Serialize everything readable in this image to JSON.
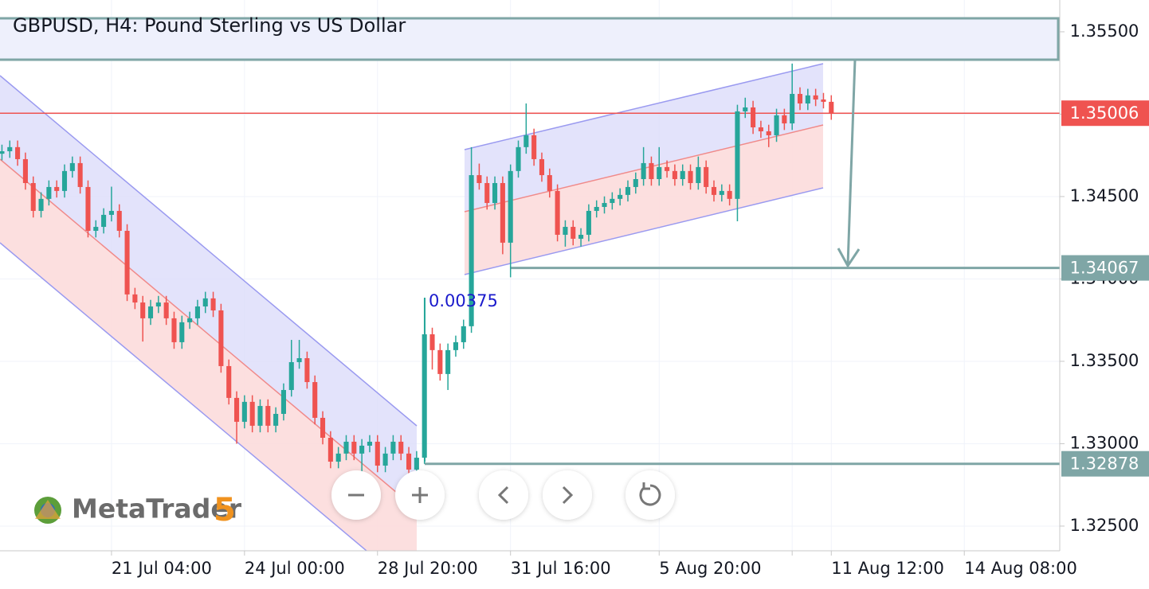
{
  "chart_data": {
    "type": "candlestick",
    "title": "GBPUSD, H4: Pound Sterling vs US Dollar",
    "watermark": "MetaTrader",
    "watermark_version": "5",
    "up_color": "#26a69a",
    "down_color": "#ef5350",
    "grid": true,
    "ylim": [
      1.3235,
      1.35693
    ],
    "yticks": [
      {
        "value": 1.325,
        "label": "1.32500"
      },
      {
        "value": 1.33,
        "label": "1.33000"
      },
      {
        "value": 1.335,
        "label": "1.33500"
      },
      {
        "value": 1.34,
        "label": "1.34000"
      },
      {
        "value": 1.345,
        "label": "1.34500"
      },
      {
        "value": 1.35,
        "label": "1.35000"
      },
      {
        "value": 1.355,
        "label": "1.35500"
      }
    ],
    "xlim": [
      -0.25,
      135.2
    ],
    "xticks": [
      {
        "value": 14,
        "label": "21 Jul 04:00"
      },
      {
        "value": 31,
        "label": "24 Jul 00:00"
      },
      {
        "value": 48,
        "label": "28 Jul 20:00"
      },
      {
        "value": 65,
        "label": "31 Jul 16:00"
      },
      {
        "value": 84,
        "label": "5 Aug 20:00"
      },
      {
        "value": 101,
        "label": null
      },
      {
        "value": 106,
        "label": "11 Aug 12:00"
      },
      {
        "value": 123,
        "label": "14 Aug 08:00"
      }
    ],
    "price_lines": [
      {
        "value": 1.35006,
        "color": "#ef5350"
      },
      {
        "value": 1.34067,
        "color": "#7fa6a6"
      },
      {
        "value": 1.32878,
        "color": "#7fa6a6"
      }
    ],
    "annotations": [
      {
        "text": "0.00375",
        "color": "#1a1acc"
      }
    ],
    "candles": [
      [
        1.3476,
        1.34815,
        1.3472,
        1.34775
      ],
      [
        1.34775,
        1.3484,
        1.34735,
        1.348
      ],
      [
        1.348,
        1.3484,
        1.34687,
        1.34727
      ],
      [
        1.34727,
        1.34767,
        1.34542,
        1.34582
      ],
      [
        1.34582,
        1.34622,
        1.34373,
        1.34413
      ],
      [
        1.34413,
        1.34526,
        1.34373,
        1.34486
      ],
      [
        1.34486,
        1.34598,
        1.34446,
        1.34558
      ],
      [
        1.34558,
        1.34598,
        1.34494,
        1.34534
      ],
      [
        1.34534,
        1.34695,
        1.34494,
        1.34655
      ],
      [
        1.34655,
        1.34743,
        1.34615,
        1.34703
      ],
      [
        1.34703,
        1.34743,
        1.34518,
        1.34558
      ],
      [
        1.34558,
        1.34598,
        1.34252,
        1.34292
      ],
      [
        1.34292,
        1.34356,
        1.34252,
        1.34316
      ],
      [
        1.34316,
        1.34429,
        1.34276,
        1.34389
      ],
      [
        1.34389,
        1.3456,
        1.34349,
        1.34413
      ],
      [
        1.34413,
        1.34453,
        1.34252,
        1.34292
      ],
      [
        1.34292,
        1.34332,
        1.33866,
        1.33906
      ],
      [
        1.33906,
        1.33946,
        1.33817,
        1.33857
      ],
      [
        1.33857,
        1.33897,
        1.3362,
        1.33761
      ],
      [
        1.33761,
        1.33873,
        1.33721,
        1.33833
      ],
      [
        1.33833,
        1.33897,
        1.33793,
        1.33857
      ],
      [
        1.33857,
        1.33897,
        1.33721,
        1.33761
      ],
      [
        1.33761,
        1.33801,
        1.33576,
        1.33616
      ],
      [
        1.33616,
        1.33777,
        1.33576,
        1.33737
      ],
      [
        1.33737,
        1.33801,
        1.33697,
        1.33761
      ],
      [
        1.33761,
        1.33873,
        1.33721,
        1.33833
      ],
      [
        1.33833,
        1.33922,
        1.33793,
        1.33882
      ],
      [
        1.33882,
        1.33922,
        1.33769,
        1.33809
      ],
      [
        1.33809,
        1.33849,
        1.33431,
        1.33471
      ],
      [
        1.33471,
        1.33511,
        1.33238,
        1.33278
      ],
      [
        1.33278,
        1.33318,
        1.33,
        1.33133
      ],
      [
        1.33133,
        1.33294,
        1.33093,
        1.33254
      ],
      [
        1.33254,
        1.33294,
        1.33069,
        1.33109
      ],
      [
        1.33109,
        1.33269,
        1.33069,
        1.33229
      ],
      [
        1.33229,
        1.33269,
        1.33069,
        1.33109
      ],
      [
        1.33109,
        1.33221,
        1.33069,
        1.33181
      ],
      [
        1.33181,
        1.33366,
        1.33141,
        1.33326
      ],
      [
        1.33326,
        1.3363,
        1.33286,
        1.33495
      ],
      [
        1.33495,
        1.3363,
        1.33455,
        1.33519
      ],
      [
        1.33519,
        1.33559,
        1.33334,
        1.33374
      ],
      [
        1.33374,
        1.33414,
        1.33117,
        1.33157
      ],
      [
        1.33157,
        1.33197,
        1.32996,
        1.33036
      ],
      [
        1.33036,
        1.33076,
        1.32851,
        1.32891
      ],
      [
        1.32891,
        1.3298,
        1.32851,
        1.3294
      ],
      [
        1.3294,
        1.33052,
        1.329,
        1.33012
      ],
      [
        1.33012,
        1.33052,
        1.329,
        1.3294
      ],
      [
        1.3294,
        1.33028,
        1.32746,
        1.32988
      ],
      [
        1.32988,
        1.33052,
        1.32948,
        1.33012
      ],
      [
        1.33012,
        1.33052,
        1.32827,
        1.32867
      ],
      [
        1.32867,
        1.3298,
        1.32827,
        1.3294
      ],
      [
        1.3294,
        1.33052,
        1.329,
        1.33012
      ],
      [
        1.33012,
        1.33052,
        1.329,
        1.3294
      ],
      [
        1.3294,
        1.3298,
        1.32803,
        1.32843
      ],
      [
        1.32843,
        1.32955,
        1.32803,
        1.32915
      ],
      [
        1.32915,
        1.33882,
        1.32878,
        1.33664
      ],
      [
        1.33664,
        1.33704,
        1.3345,
        1.33568
      ],
      [
        1.33568,
        1.33608,
        1.33383,
        1.33423
      ],
      [
        1.33423,
        1.33608,
        1.33326,
        1.33568
      ],
      [
        1.33568,
        1.33656,
        1.33528,
        1.33616
      ],
      [
        1.33616,
        1.33753,
        1.33576,
        1.33713
      ],
      [
        1.33713,
        1.348,
        1.33673,
        1.3463
      ],
      [
        1.3463,
        1.347,
        1.34542,
        1.34582
      ],
      [
        1.34582,
        1.34622,
        1.34421,
        1.34461
      ],
      [
        1.34461,
        1.34622,
        1.34421,
        1.34582
      ],
      [
        1.34582,
        1.34622,
        1.3415,
        1.3422
      ],
      [
        1.3422,
        1.34695,
        1.3401,
        1.34655
      ],
      [
        1.34655,
        1.3484,
        1.34615,
        1.348
      ],
      [
        1.348,
        1.35065,
        1.3476,
        1.34872
      ],
      [
        1.34872,
        1.34912,
        1.34687,
        1.34727
      ],
      [
        1.34727,
        1.34767,
        1.3459,
        1.3463
      ],
      [
        1.3463,
        1.3467,
        1.34494,
        1.34534
      ],
      [
        1.34534,
        1.34574,
        1.34228,
        1.34268
      ],
      [
        1.34268,
        1.34356,
        1.34196,
        1.34316
      ],
      [
        1.34316,
        1.34356,
        1.34204,
        1.34244
      ],
      [
        1.34244,
        1.34308,
        1.34196,
        1.34268
      ],
      [
        1.34268,
        1.34453,
        1.34228,
        1.34413
      ],
      [
        1.34413,
        1.34477,
        1.34373,
        1.34437
      ],
      [
        1.34437,
        1.34501,
        1.34397,
        1.34461
      ],
      [
        1.34461,
        1.34526,
        1.34421,
        1.34486
      ],
      [
        1.34486,
        1.3455,
        1.34446,
        1.3451
      ],
      [
        1.3451,
        1.34598,
        1.3447,
        1.34558
      ],
      [
        1.34558,
        1.34646,
        1.34518,
        1.34606
      ],
      [
        1.34606,
        1.348,
        1.34566,
        1.34703
      ],
      [
        1.34703,
        1.34743,
        1.34566,
        1.34606
      ],
      [
        1.34606,
        1.348,
        1.34566,
        1.34679
      ],
      [
        1.34679,
        1.34719,
        1.34615,
        1.34655
      ],
      [
        1.34655,
        1.34695,
        1.34566,
        1.34606
      ],
      [
        1.34606,
        1.34695,
        1.34566,
        1.34655
      ],
      [
        1.34655,
        1.34695,
        1.34542,
        1.34582
      ],
      [
        1.34582,
        1.34743,
        1.34542,
        1.34679
      ],
      [
        1.34679,
        1.34719,
        1.34518,
        1.34558
      ],
      [
        1.34558,
        1.34598,
        1.3447,
        1.3451
      ],
      [
        1.3451,
        1.34574,
        1.3447,
        1.34534
      ],
      [
        1.34534,
        1.34574,
        1.34446,
        1.34486
      ],
      [
        1.34486,
        1.35057,
        1.3435,
        1.35017
      ],
      [
        1.35017,
        1.351,
        1.34977,
        1.35041
      ],
      [
        1.35041,
        1.35081,
        1.3488,
        1.3492
      ],
      [
        1.3492,
        1.3496,
        1.34856,
        1.34896
      ],
      [
        1.34896,
        1.34936,
        1.348,
        1.34872
      ],
      [
        1.34872,
        1.35033,
        1.34832,
        1.34993
      ],
      [
        1.34993,
        1.35033,
        1.34904,
        1.34944
      ],
      [
        1.34944,
        1.35307,
        1.34904,
        1.35123
      ],
      [
        1.35123,
        1.35163,
        1.35025,
        1.35065
      ],
      [
        1.35065,
        1.35154,
        1.35025,
        1.35114
      ],
      [
        1.35114,
        1.35154,
        1.35049,
        1.35089
      ],
      [
        1.35089,
        1.35129,
        1.35035,
        1.35075
      ],
      [
        1.35075,
        1.35115,
        1.34966,
        1.35006
      ]
    ]
  }
}
